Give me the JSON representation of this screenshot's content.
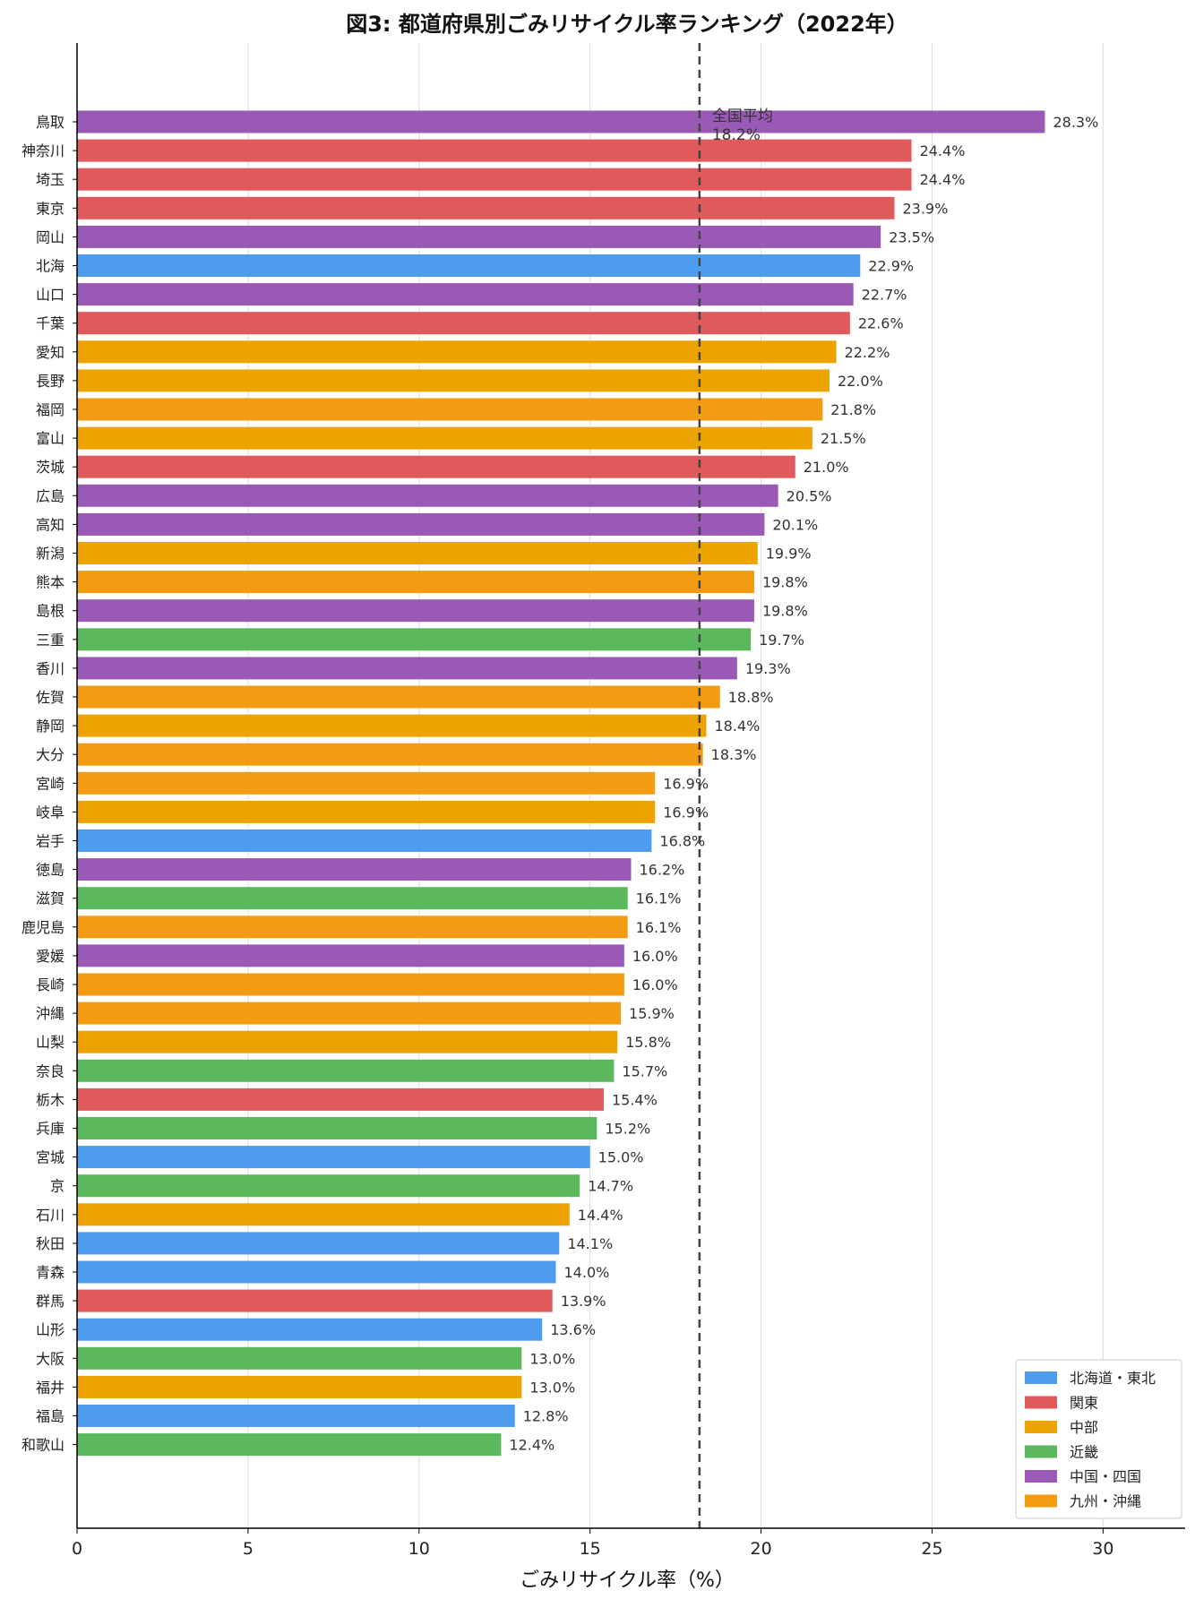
{
  "chart_data": {
    "type": "bar",
    "orientation": "horizontal",
    "title": "図3: 都道府県別ごみリサイクル率ランキング（2022年）",
    "xlabel": "ごみリサイクル率（%）",
    "ylabel": "",
    "xlim": [
      0,
      32.4
    ],
    "xticks": [
      0,
      5,
      10,
      15,
      20,
      25,
      30
    ],
    "grid": "vertical",
    "legend_position": "bottom-right",
    "value_suffix": "%",
    "average": {
      "label_line1": "全国平均",
      "label_line2": "18.2%",
      "value": 18.2
    },
    "regions": [
      {
        "name": "北海道・東北",
        "color": "#4e9ced"
      },
      {
        "name": "関東",
        "color": "#e05a5b"
      },
      {
        "name": "中部",
        "color": "#eca300"
      },
      {
        "name": "近畿",
        "color": "#5cb85c"
      },
      {
        "name": "中国・四国",
        "color": "#9b59b6"
      },
      {
        "name": "九州・沖縄",
        "color": "#f39c12"
      }
    ],
    "bars": [
      {
        "label": "鳥取",
        "value": 28.3,
        "value_label": "28.3%",
        "region": 4
      },
      {
        "label": "神奈川",
        "value": 24.4,
        "value_label": "24.4%",
        "region": 1
      },
      {
        "label": "埼玉",
        "value": 24.4,
        "value_label": "24.4%",
        "region": 1
      },
      {
        "label": "東京",
        "value": 23.9,
        "value_label": "23.9%",
        "region": 1
      },
      {
        "label": "岡山",
        "value": 23.5,
        "value_label": "23.5%",
        "region": 4
      },
      {
        "label": "北海",
        "value": 22.9,
        "value_label": "22.9%",
        "region": 0
      },
      {
        "label": "山口",
        "value": 22.7,
        "value_label": "22.7%",
        "region": 4
      },
      {
        "label": "千葉",
        "value": 22.6,
        "value_label": "22.6%",
        "region": 1
      },
      {
        "label": "愛知",
        "value": 22.2,
        "value_label": "22.2%",
        "region": 2
      },
      {
        "label": "長野",
        "value": 22.0,
        "value_label": "22.0%",
        "region": 2
      },
      {
        "label": "福岡",
        "value": 21.8,
        "value_label": "21.8%",
        "region": 5
      },
      {
        "label": "富山",
        "value": 21.5,
        "value_label": "21.5%",
        "region": 2
      },
      {
        "label": "茨城",
        "value": 21.0,
        "value_label": "21.0%",
        "region": 1
      },
      {
        "label": "広島",
        "value": 20.5,
        "value_label": "20.5%",
        "region": 4
      },
      {
        "label": "高知",
        "value": 20.1,
        "value_label": "20.1%",
        "region": 4
      },
      {
        "label": "新潟",
        "value": 19.9,
        "value_label": "19.9%",
        "region": 2
      },
      {
        "label": "熊本",
        "value": 19.8,
        "value_label": "19.8%",
        "region": 5
      },
      {
        "label": "島根",
        "value": 19.8,
        "value_label": "19.8%",
        "region": 4
      },
      {
        "label": "三重",
        "value": 19.7,
        "value_label": "19.7%",
        "region": 3
      },
      {
        "label": "香川",
        "value": 19.3,
        "value_label": "19.3%",
        "region": 4
      },
      {
        "label": "佐賀",
        "value": 18.8,
        "value_label": "18.8%",
        "region": 5
      },
      {
        "label": "静岡",
        "value": 18.4,
        "value_label": "18.4%",
        "region": 2
      },
      {
        "label": "大分",
        "value": 18.3,
        "value_label": "18.3%",
        "region": 5
      },
      {
        "label": "宮崎",
        "value": 16.9,
        "value_label": "16.9%",
        "region": 5
      },
      {
        "label": "岐阜",
        "value": 16.9,
        "value_label": "16.9%",
        "region": 2
      },
      {
        "label": "岩手",
        "value": 16.8,
        "value_label": "16.8%",
        "region": 0
      },
      {
        "label": "徳島",
        "value": 16.2,
        "value_label": "16.2%",
        "region": 4
      },
      {
        "label": "滋賀",
        "value": 16.1,
        "value_label": "16.1%",
        "region": 3
      },
      {
        "label": "鹿児島",
        "value": 16.1,
        "value_label": "16.1%",
        "region": 5
      },
      {
        "label": "愛媛",
        "value": 16.0,
        "value_label": "16.0%",
        "region": 4
      },
      {
        "label": "長崎",
        "value": 16.0,
        "value_label": "16.0%",
        "region": 5
      },
      {
        "label": "沖縄",
        "value": 15.9,
        "value_label": "15.9%",
        "region": 5
      },
      {
        "label": "山梨",
        "value": 15.8,
        "value_label": "15.8%",
        "region": 2
      },
      {
        "label": "奈良",
        "value": 15.7,
        "value_label": "15.7%",
        "region": 3
      },
      {
        "label": "栃木",
        "value": 15.4,
        "value_label": "15.4%",
        "region": 1
      },
      {
        "label": "兵庫",
        "value": 15.2,
        "value_label": "15.2%",
        "region": 3
      },
      {
        "label": "宮城",
        "value": 15.0,
        "value_label": "15.0%",
        "region": 0
      },
      {
        "label": "京",
        "value": 14.7,
        "value_label": "14.7%",
        "region": 3
      },
      {
        "label": "石川",
        "value": 14.4,
        "value_label": "14.4%",
        "region": 2
      },
      {
        "label": "秋田",
        "value": 14.1,
        "value_label": "14.1%",
        "region": 0
      },
      {
        "label": "青森",
        "value": 14.0,
        "value_label": "14.0%",
        "region": 0
      },
      {
        "label": "群馬",
        "value": 13.9,
        "value_label": "13.9%",
        "region": 1
      },
      {
        "label": "山形",
        "value": 13.6,
        "value_label": "13.6%",
        "region": 0
      },
      {
        "label": "大阪",
        "value": 13.0,
        "value_label": "13.0%",
        "region": 3
      },
      {
        "label": "福井",
        "value": 13.0,
        "value_label": "13.0%",
        "region": 2
      },
      {
        "label": "福島",
        "value": 12.8,
        "value_label": "12.8%",
        "region": 0
      },
      {
        "label": "和歌山",
        "value": 12.4,
        "value_label": "12.4%",
        "region": 3
      }
    ]
  }
}
